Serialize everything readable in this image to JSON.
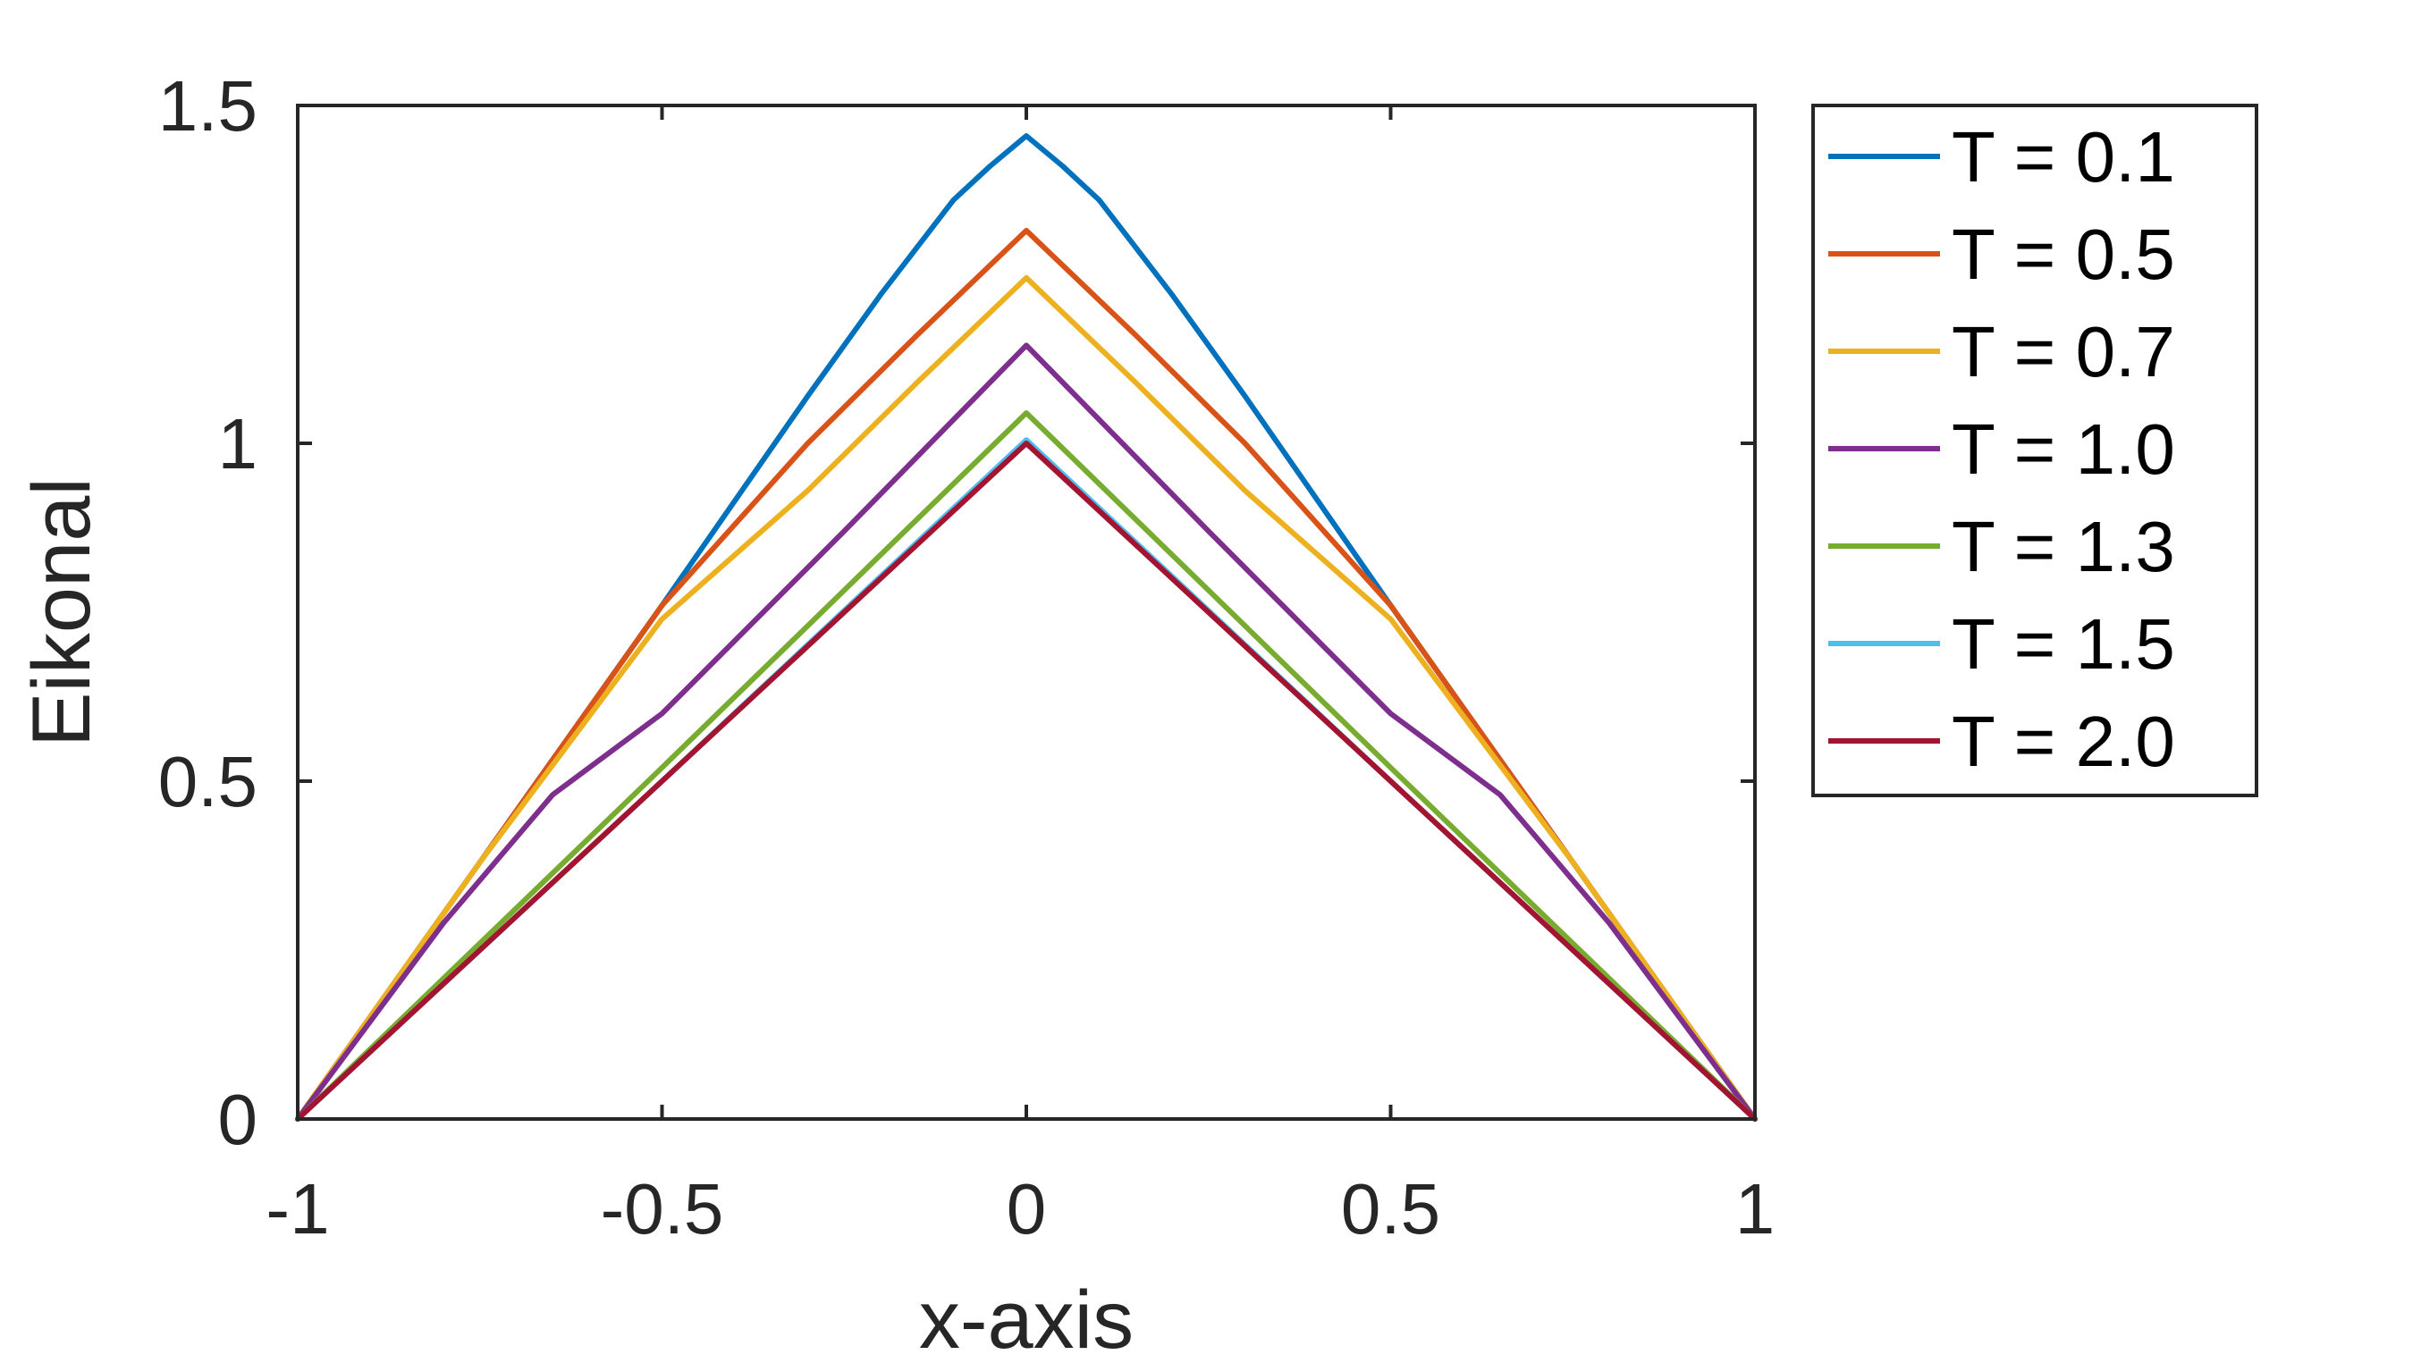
{
  "chart_data": {
    "type": "line",
    "title": "",
    "xlabel": "x-axis",
    "ylabel": "Eikonal",
    "xlim": [
      -1,
      1
    ],
    "ylim": [
      0,
      1.5
    ],
    "xticks": [
      -1,
      -0.5,
      0,
      0.5,
      1
    ],
    "xtick_labels": [
      "-1",
      "-0.5",
      "0",
      "0.5",
      "1"
    ],
    "yticks": [
      0,
      0.5,
      1,
      1.5
    ],
    "ytick_labels": [
      "0",
      "0.5",
      "1",
      "1.5"
    ],
    "grid": false,
    "legend_position": "outside-right-top",
    "series": [
      {
        "name": "T = 0.1",
        "color": "#0072BD",
        "points": [
          [
            -1,
            0
          ],
          [
            -0.75,
            0.38
          ],
          [
            -0.5,
            0.76
          ],
          [
            -0.3,
            1.07
          ],
          [
            -0.2,
            1.22
          ],
          [
            -0.1,
            1.36
          ],
          [
            -0.05,
            1.41
          ],
          [
            0,
            1.455
          ],
          [
            0.05,
            1.41
          ],
          [
            0.1,
            1.36
          ],
          [
            0.2,
            1.22
          ],
          [
            0.3,
            1.07
          ],
          [
            0.5,
            0.76
          ],
          [
            0.75,
            0.38
          ],
          [
            1,
            0
          ]
        ]
      },
      {
        "name": "T = 0.5",
        "color": "#D95319",
        "points": [
          [
            -1,
            0
          ],
          [
            -0.75,
            0.38
          ],
          [
            -0.5,
            0.76
          ],
          [
            -0.3,
            1.0
          ],
          [
            -0.15,
            1.16
          ],
          [
            0,
            1.315
          ],
          [
            0.15,
            1.16
          ],
          [
            0.3,
            1.0
          ],
          [
            0.5,
            0.76
          ],
          [
            0.75,
            0.38
          ],
          [
            1,
            0
          ]
        ]
      },
      {
        "name": "T = 0.7",
        "color": "#EDB120",
        "points": [
          [
            -1,
            0
          ],
          [
            -0.75,
            0.38
          ],
          [
            -0.5,
            0.74
          ],
          [
            -0.3,
            0.93
          ],
          [
            -0.15,
            1.09
          ],
          [
            0,
            1.245
          ],
          [
            0.15,
            1.09
          ],
          [
            0.3,
            0.93
          ],
          [
            0.5,
            0.74
          ],
          [
            0.75,
            0.38
          ],
          [
            1,
            0
          ]
        ]
      },
      {
        "name": "T = 1.0",
        "color": "#7E2F8E",
        "points": [
          [
            -1,
            0
          ],
          [
            -0.8,
            0.29
          ],
          [
            -0.65,
            0.48
          ],
          [
            -0.5,
            0.6
          ],
          [
            -0.25,
            0.87
          ],
          [
            0,
            1.145
          ],
          [
            0.25,
            0.87
          ],
          [
            0.5,
            0.6
          ],
          [
            0.65,
            0.48
          ],
          [
            0.8,
            0.29
          ],
          [
            1,
            0
          ]
        ]
      },
      {
        "name": "T = 1.3",
        "color": "#77AC30",
        "points": [
          [
            -1,
            0
          ],
          [
            -0.5,
            0.52
          ],
          [
            0,
            1.045
          ],
          [
            0.5,
            0.52
          ],
          [
            1,
            0
          ]
        ]
      },
      {
        "name": "T = 1.5",
        "color": "#4DBEEE",
        "points": [
          [
            -1,
            0
          ],
          [
            -0.5,
            0.5
          ],
          [
            0,
            1.005
          ],
          [
            0.5,
            0.5
          ],
          [
            1,
            0
          ]
        ]
      },
      {
        "name": "T = 2.0",
        "color": "#A2142F",
        "points": [
          [
            -1,
            0
          ],
          [
            -0.5,
            0.5
          ],
          [
            0,
            1.0
          ],
          [
            0.5,
            0.5
          ],
          [
            1,
            0
          ]
        ]
      }
    ]
  }
}
